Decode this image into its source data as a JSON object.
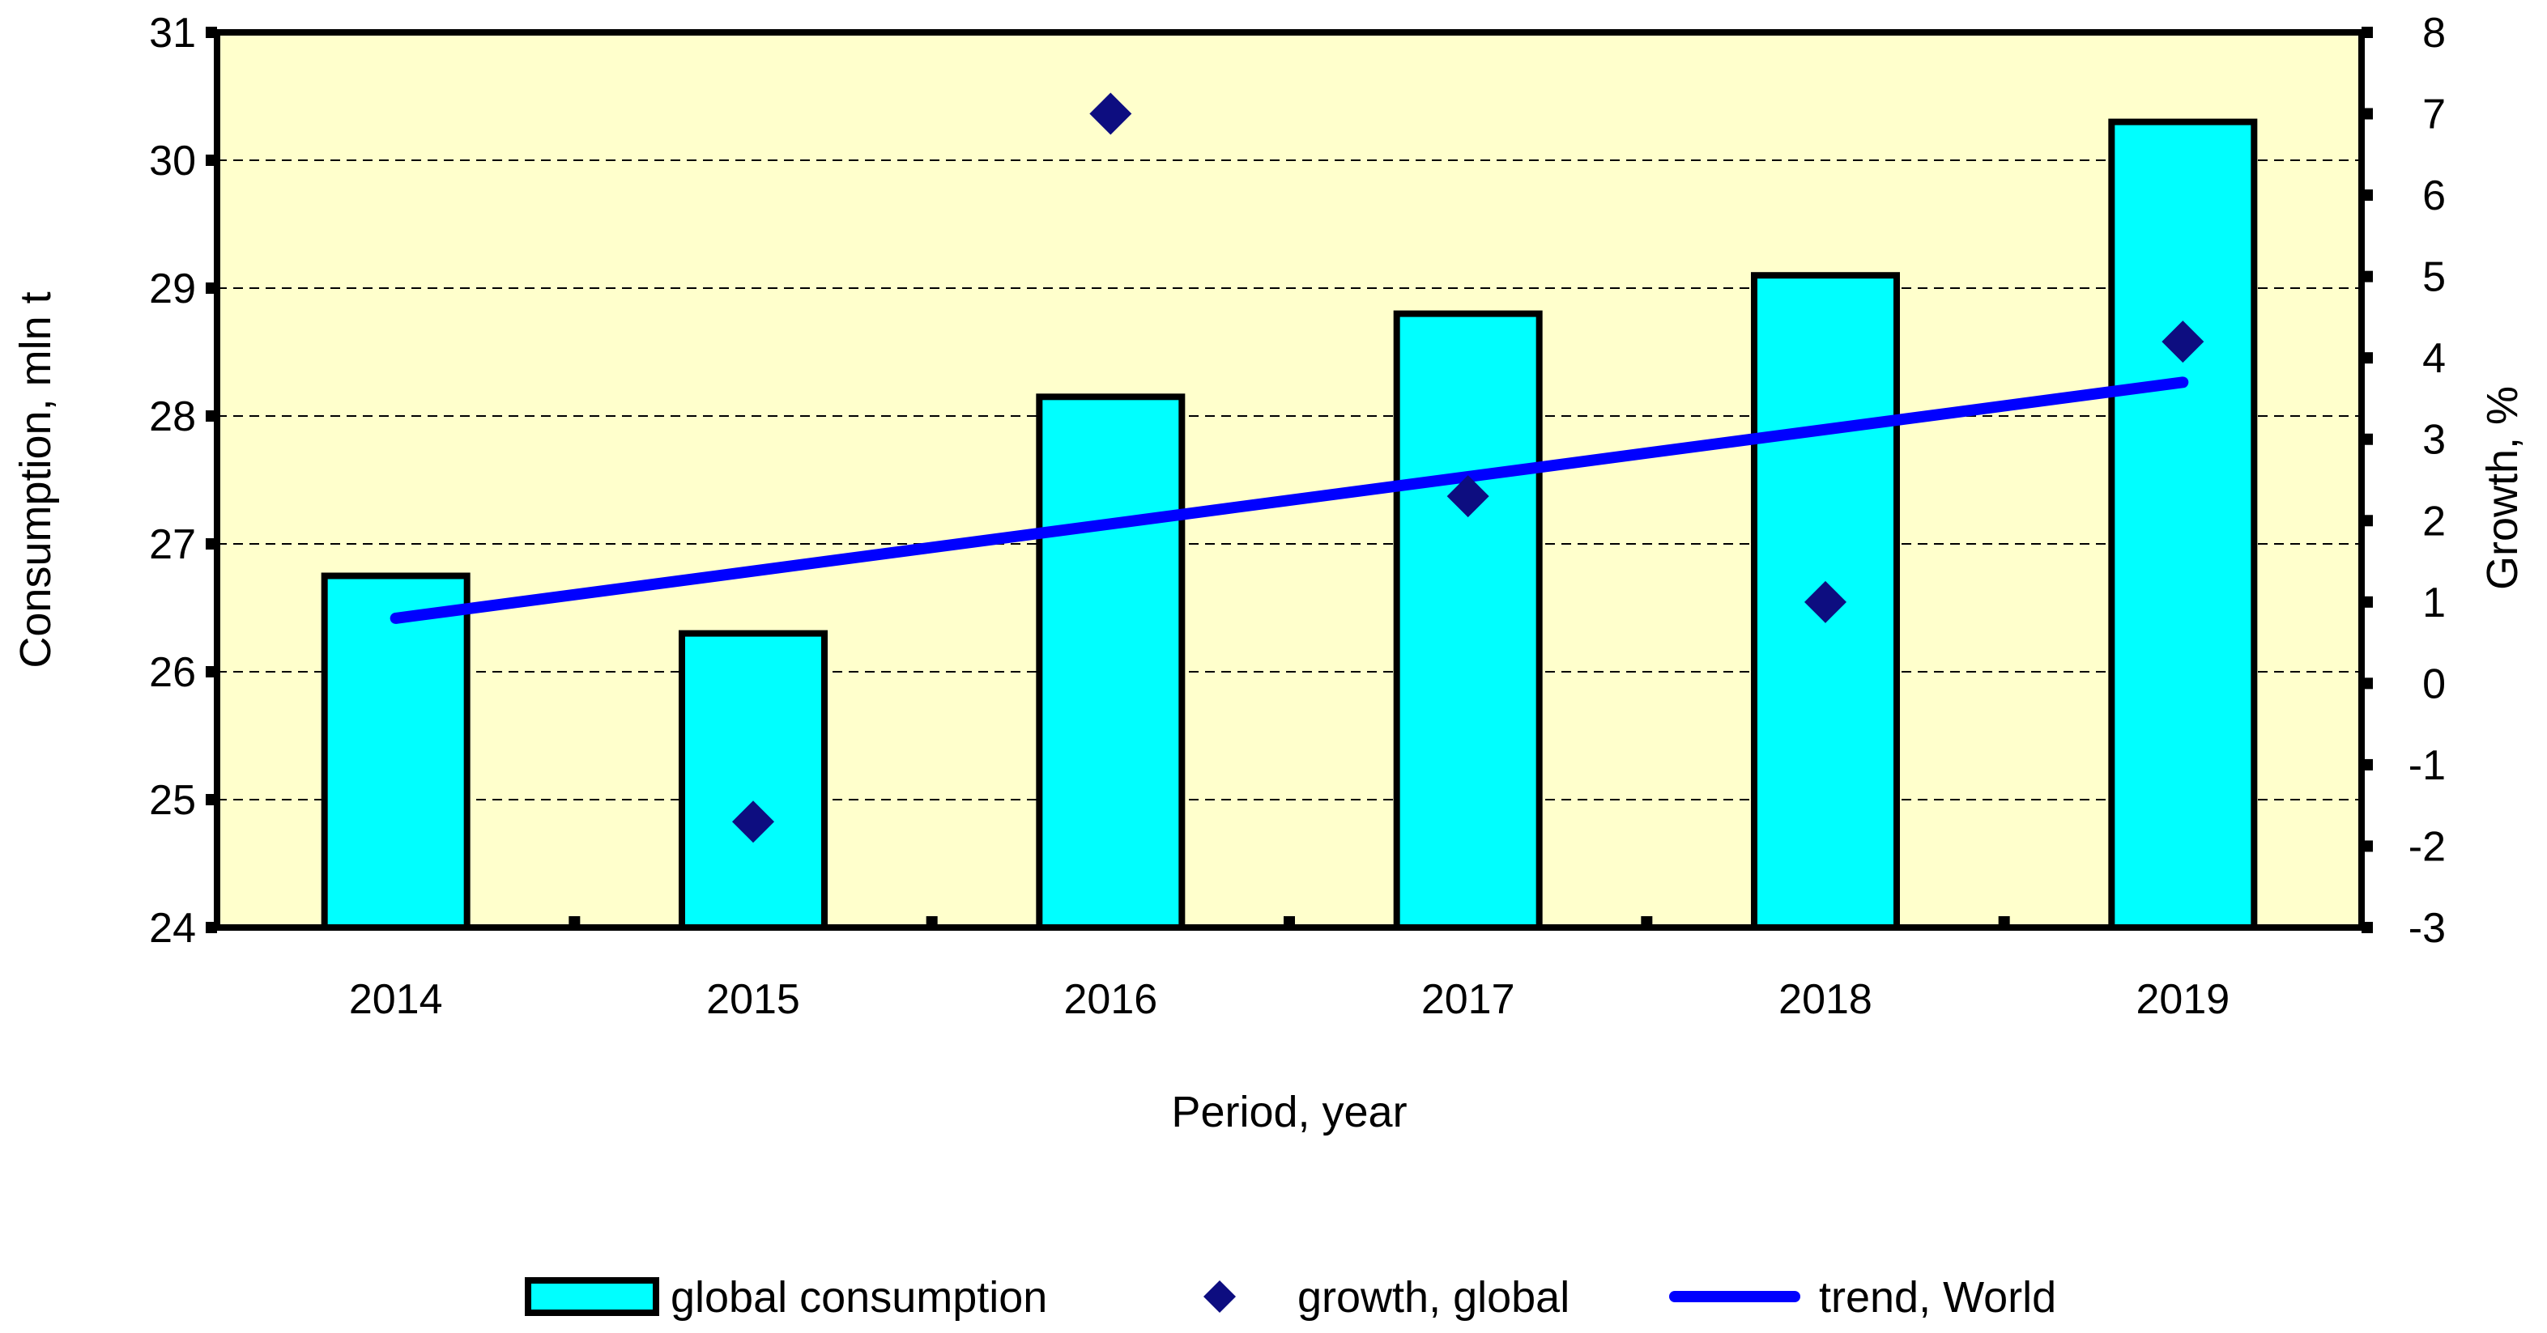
{
  "chart_data": {
    "type": "bar",
    "categories": [
      "2014",
      "2015",
      "2016",
      "2017",
      "2018",
      "2019"
    ],
    "series": [
      {
        "name": "global consumption",
        "kind": "bar",
        "axis": "left",
        "values": [
          26.75,
          26.3,
          28.15,
          28.8,
          29.1,
          30.3
        ],
        "color": "#00FFFF"
      },
      {
        "name": "growth, global",
        "kind": "scatter",
        "axis": "right",
        "values": [
          null,
          -1.7,
          7.0,
          2.3,
          1.0,
          4.2
        ],
        "color": "#0D0D80"
      },
      {
        "name": "trend, World",
        "kind": "line",
        "axis": "right",
        "values": [
          0.8,
          1.38,
          1.96,
          2.54,
          3.12,
          3.7
        ],
        "color": "#0000FF"
      }
    ],
    "title": "",
    "xlabel": "Period, year",
    "ylabel": "Consumption, mln t",
    "y2label": "Growth, %",
    "ylim": [
      24,
      31
    ],
    "y2lim": [
      -3,
      8
    ],
    "yticks": [
      "24",
      "25",
      "26",
      "27",
      "28",
      "29",
      "30",
      "31"
    ],
    "y2ticks": [
      "-3",
      "-2",
      "-1",
      "0",
      "1",
      "2",
      "3",
      "4",
      "5",
      "6",
      "7",
      "8"
    ],
    "grid": true,
    "legend_position": "bottom",
    "plot_background": "#FFFFCC"
  }
}
